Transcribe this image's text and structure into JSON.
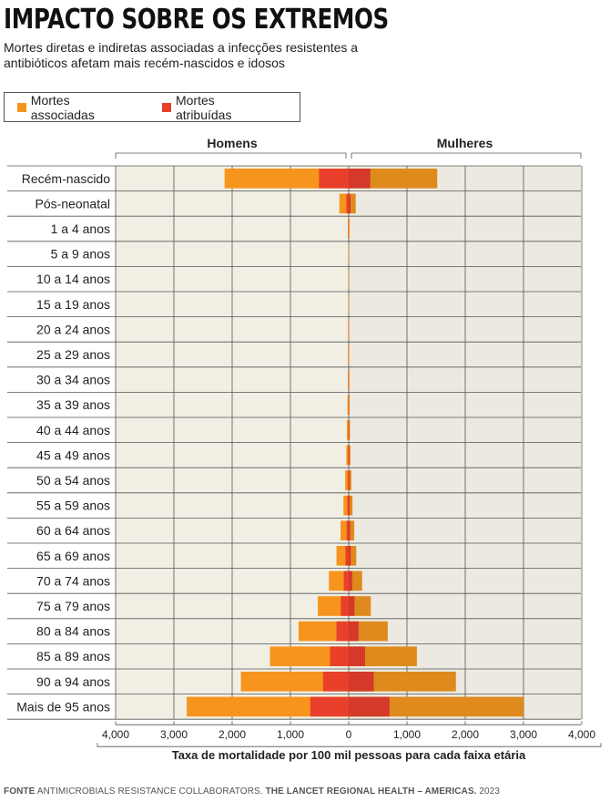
{
  "title": "IMPACTO SOBRE OS EXTREMOS",
  "subtitle": "Mortes diretas e indiretas associadas a infecções resistentes a antibióticos afetam mais recém-nascidos e idosos",
  "legend": {
    "associated_label": "Mortes associadas",
    "attributed_label": "Mortes atribuídas"
  },
  "source": {
    "prefix": "FONTE",
    "authors": "ANTIMICROBIALS RESISTANCE COLLABORATORS. ",
    "journal": "THE LANCET REGIONAL HEALTH – AMERICAS.",
    "year": " 2023"
  },
  "colors": {
    "men_associated": "#f7941d",
    "men_attributed": "#e8402a",
    "women_associated": "#df8a1c",
    "women_attributed": "#d4392a",
    "men_bg": "#f1efe4",
    "women_bg": "#eceae0",
    "grid": "#555555"
  },
  "chart_data": {
    "type": "bar",
    "orientation": "horizontal-population-pyramid",
    "groups": [
      "Homens",
      "Mulheres"
    ],
    "xlabel": "Taxa de mortalidade por 100 mil pessoas para cada faixa etária",
    "xlim": [
      -4000,
      4000
    ],
    "tick_labels": [
      "4,000",
      "3,000",
      "2,000",
      "1,000",
      "0",
      "1,000",
      "2,000",
      "3,000",
      "4,000"
    ],
    "categories": [
      "Recém-nascido",
      "Pós-neonatal",
      "1 a 4 anos",
      "5 a 9 anos",
      "10 a 14 anos",
      "15 a 19 anos",
      "20 a 24 anos",
      "25 a 29 anos",
      "30 a 34 anos",
      "35 a 39 anos",
      "40 a 44 anos",
      "45 a 49 anos",
      "50 a 54 anos",
      "55 a 59 anos",
      "60 a 64 anos",
      "65 a 69 anos",
      "70 a 74 anos",
      "75 a 79 anos",
      "80 a 84 anos",
      "85 a 89 anos",
      "90 a 94 anos",
      "Mais de 95 anos"
    ],
    "series": [
      {
        "name": "Homens — Mortes associadas",
        "values": [
          2130,
          160,
          15,
          5,
          5,
          7,
          10,
          12,
          15,
          20,
          30,
          40,
          60,
          90,
          140,
          210,
          340,
          530,
          860,
          1350,
          1850,
          2780
        ]
      },
      {
        "name": "Homens — Mortes atribuídas",
        "values": [
          510,
          40,
          4,
          1,
          1,
          2,
          3,
          3,
          4,
          5,
          8,
          10,
          15,
          22,
          35,
          55,
          85,
          135,
          210,
          320,
          440,
          660
        ]
      },
      {
        "name": "Mulheres — Mortes associadas",
        "values": [
          1520,
          120,
          12,
          4,
          4,
          5,
          6,
          8,
          10,
          14,
          22,
          30,
          45,
          65,
          95,
          130,
          230,
          380,
          670,
          1170,
          1840,
          3000
        ]
      },
      {
        "name": "Mulheres — Mortes atribuídas",
        "values": [
          370,
          30,
          3,
          1,
          1,
          1,
          2,
          2,
          3,
          4,
          5,
          7,
          11,
          16,
          24,
          35,
          60,
          100,
          170,
          280,
          430,
          700
        ]
      }
    ]
  }
}
